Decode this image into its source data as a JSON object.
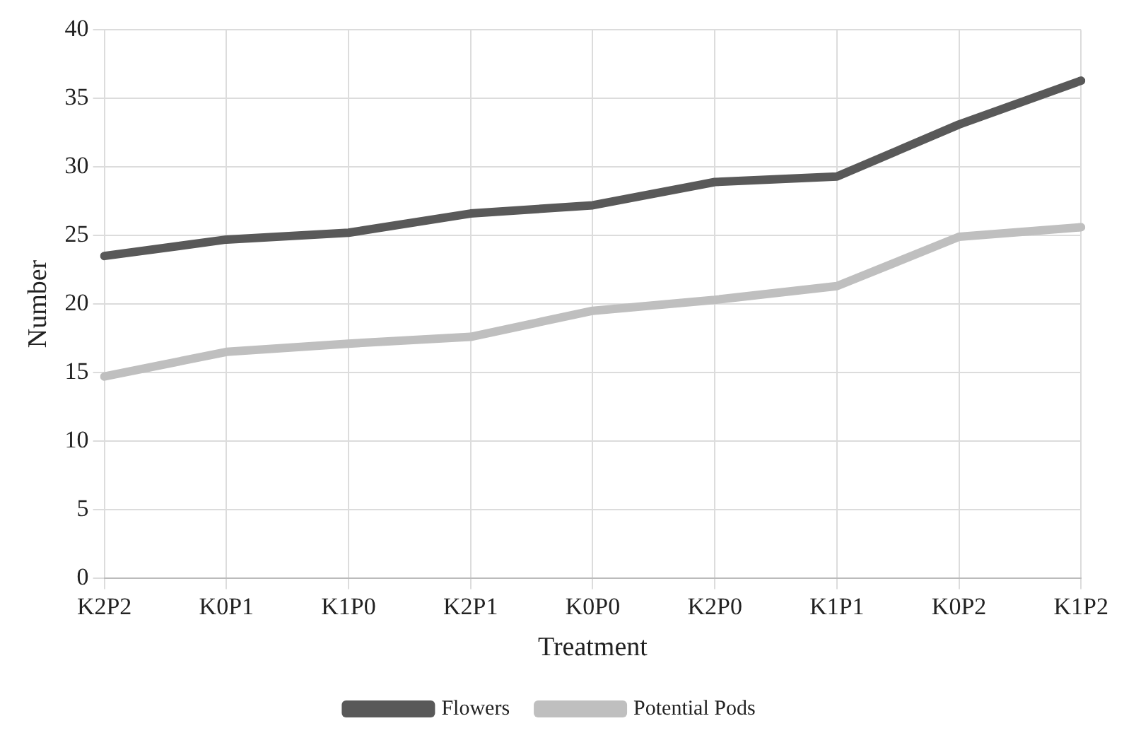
{
  "chart_data": {
    "type": "line",
    "xlabel": "Treatment",
    "ylabel": "Number",
    "categories": [
      "K2P2",
      "K0P1",
      "K1P0",
      "K2P1",
      "K0P0",
      "K2P0",
      "K1P1",
      "K0P2",
      "K1P2"
    ],
    "series": [
      {
        "name": "Flowers",
        "color": "#595959",
        "values": [
          23.5,
          24.7,
          25.2,
          26.6,
          27.2,
          28.9,
          29.3,
          33.1,
          36.3
        ]
      },
      {
        "name": "Potential Pods",
        "color": "#bfbfbf",
        "values": [
          14.7,
          16.5,
          17.1,
          17.6,
          19.5,
          20.3,
          21.3,
          24.9,
          25.6
        ]
      }
    ],
    "ylim": [
      0,
      40
    ],
    "yticks": [
      0,
      5,
      10,
      15,
      20,
      25,
      30,
      35,
      40
    ],
    "grid": true,
    "legend": "bottom",
    "marker": "none",
    "line_style": "solid"
  }
}
